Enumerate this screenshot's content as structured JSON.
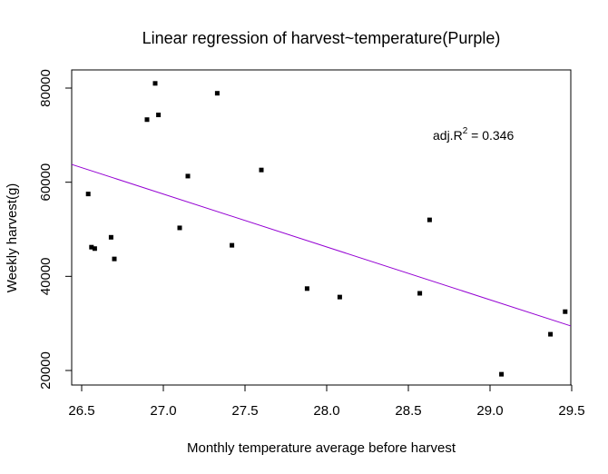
{
  "chart_data": {
    "type": "scatter",
    "title": "Linear regression of harvest~temperature(Purple)",
    "xlabel": "Monthly temperature average before harvest",
    "ylabel": "Weekly harvest(g)",
    "xlim": [
      26.5,
      29.5
    ],
    "ylim": [
      20000,
      80000
    ],
    "x_ticks": [
      26.5,
      27.0,
      27.5,
      28.0,
      28.5,
      29.0,
      29.5
    ],
    "x_tick_labels": [
      "26.5",
      "27.0",
      "27.5",
      "28.0",
      "28.5",
      "29.0",
      "29.5"
    ],
    "y_ticks": [
      20000,
      40000,
      60000,
      80000
    ],
    "y_tick_labels": [
      "20000",
      "40000",
      "60000",
      "80000"
    ],
    "points": [
      {
        "x": 26.54,
        "y": 57500
      },
      {
        "x": 26.56,
        "y": 46200
      },
      {
        "x": 26.58,
        "y": 45900
      },
      {
        "x": 26.68,
        "y": 48300
      },
      {
        "x": 26.7,
        "y": 43700
      },
      {
        "x": 26.9,
        "y": 73300
      },
      {
        "x": 26.95,
        "y": 81000
      },
      {
        "x": 26.97,
        "y": 74300
      },
      {
        "x": 27.1,
        "y": 50300
      },
      {
        "x": 27.15,
        "y": 61300
      },
      {
        "x": 27.33,
        "y": 78900
      },
      {
        "x": 27.42,
        "y": 46600
      },
      {
        "x": 27.6,
        "y": 62600
      },
      {
        "x": 27.88,
        "y": 37400
      },
      {
        "x": 28.08,
        "y": 35600
      },
      {
        "x": 28.57,
        "y": 36400
      },
      {
        "x": 28.63,
        "y": 52000
      },
      {
        "x": 29.07,
        "y": 19200
      },
      {
        "x": 29.37,
        "y": 27700
      },
      {
        "x": 29.46,
        "y": 32500
      }
    ],
    "regression_line": {
      "color": "#9400D3",
      "start": {
        "x": 26.5,
        "y": 63100
      },
      "end": {
        "x": 29.5,
        "y": 29400
      }
    },
    "annotation": {
      "prefix": "adj.R",
      "superscript": "2",
      "suffix": " = 0.346",
      "x": 28.65,
      "y": 70000
    },
    "grid": false,
    "point_color": "#000000"
  }
}
